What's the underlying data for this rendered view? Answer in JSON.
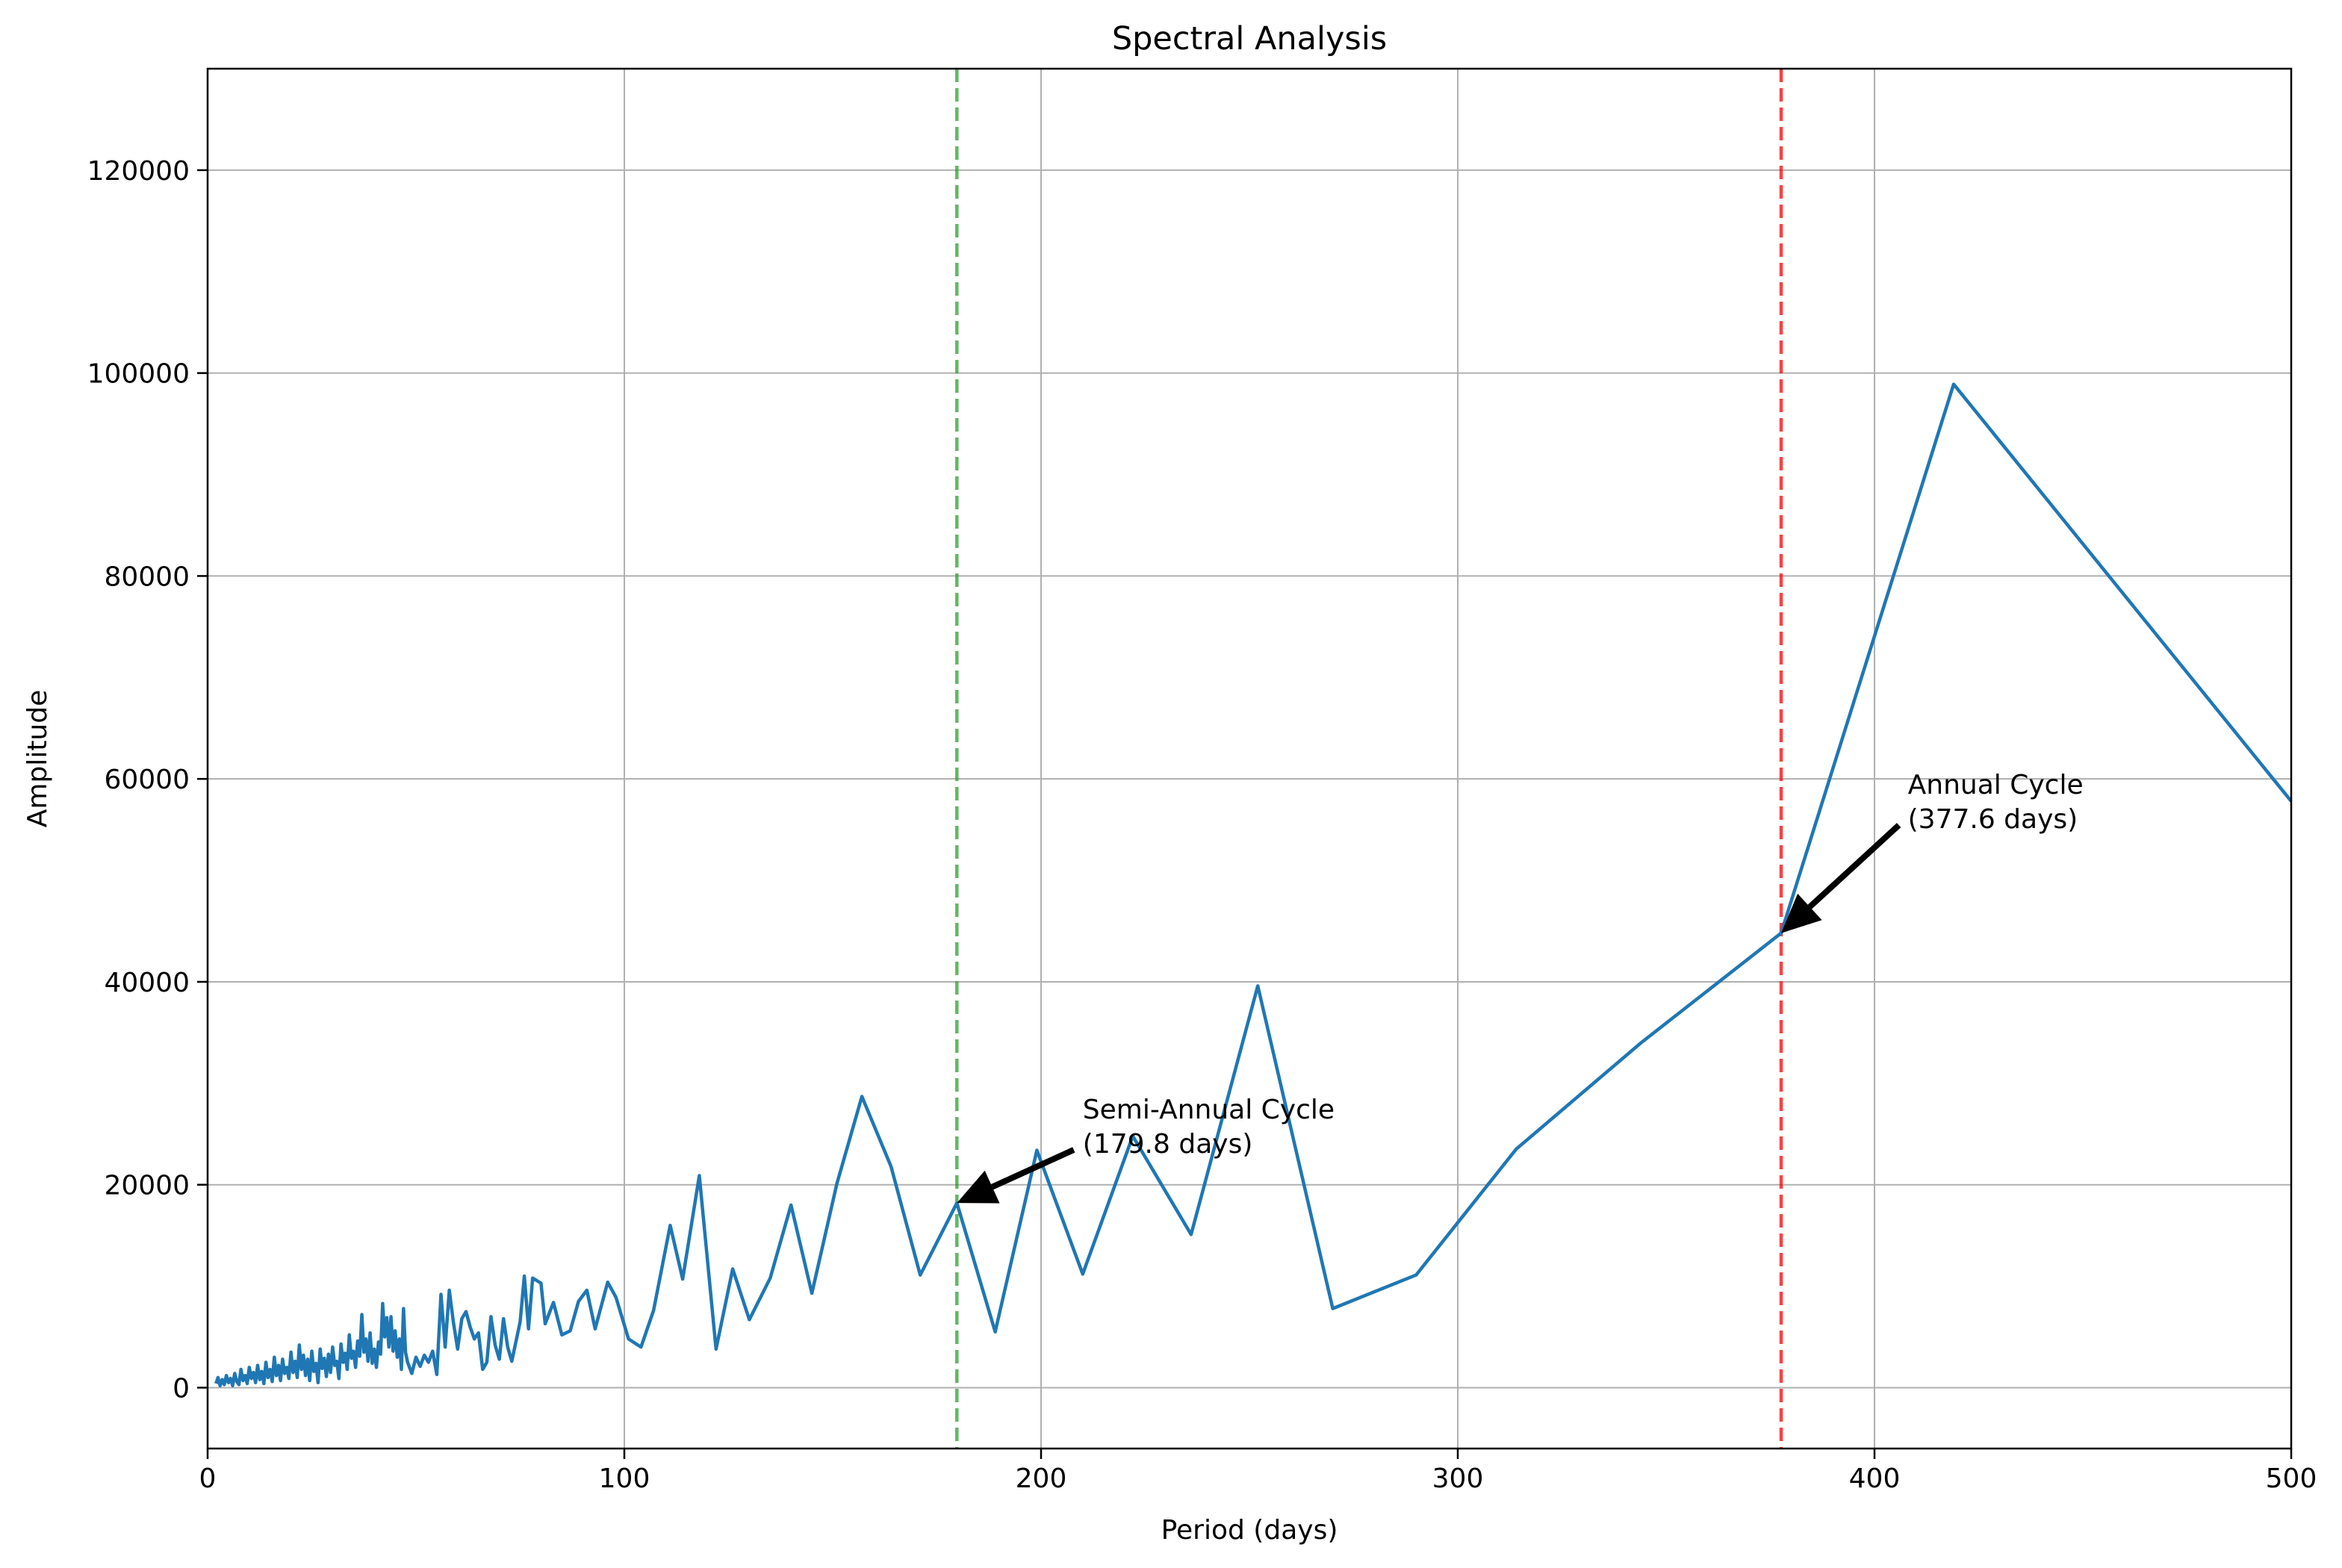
{
  "chart_data": {
    "type": "line",
    "title": "Spectral Analysis",
    "xlabel": "Period (days)",
    "ylabel": "Amplitude",
    "xlim": [
      0,
      500
    ],
    "ylim": [
      -6000,
      130000
    ],
    "xticks": [
      0,
      100,
      200,
      300,
      400,
      500
    ],
    "yticks": [
      0,
      20000,
      40000,
      60000,
      80000,
      100000,
      120000
    ],
    "xtick_labels": [
      "0",
      "100",
      "200",
      "300",
      "400",
      "500"
    ],
    "ytick_labels": [
      "0",
      "20000",
      "40000",
      "60000",
      "80000",
      "100000",
      "120000"
    ],
    "grid": true,
    "series": [
      {
        "color": "#1f77b4",
        "points": [
          [
            2,
            400
          ],
          [
            2.5,
            1000
          ],
          [
            3,
            200
          ],
          [
            3.5,
            800
          ],
          [
            4,
            300
          ],
          [
            4.5,
            1200
          ],
          [
            5,
            500
          ],
          [
            5.5,
            900
          ],
          [
            6,
            200
          ],
          [
            6.5,
            1400
          ],
          [
            7,
            600
          ],
          [
            7.5,
            300
          ],
          [
            8,
            1800
          ],
          [
            8.5,
            700
          ],
          [
            9,
            1200
          ],
          [
            9.5,
            400
          ],
          [
            10,
            2000
          ],
          [
            10.5,
            900
          ],
          [
            11,
            1500
          ],
          [
            11.5,
            500
          ],
          [
            12,
            2200
          ],
          [
            12.5,
            800
          ],
          [
            13,
            1600
          ],
          [
            13.5,
            400
          ],
          [
            14,
            2500
          ],
          [
            14.5,
            1000
          ],
          [
            15,
            1800
          ],
          [
            15.5,
            600
          ],
          [
            16,
            3000
          ],
          [
            16.5,
            1200
          ],
          [
            17,
            2200
          ],
          [
            17.5,
            700
          ],
          [
            18,
            2800
          ],
          [
            18.5,
            1400
          ],
          [
            19,
            2000
          ],
          [
            19.5,
            900
          ],
          [
            20,
            3500
          ],
          [
            20.5,
            1500
          ],
          [
            21,
            2600
          ],
          [
            21.5,
            1000
          ],
          [
            22,
            4200
          ],
          [
            22.5,
            1800
          ],
          [
            23,
            3200
          ],
          [
            23.5,
            1200
          ],
          [
            24,
            2800
          ],
          [
            24.5,
            700
          ],
          [
            25,
            3600
          ],
          [
            25.5,
            1600
          ],
          [
            26,
            2400
          ],
          [
            26.5,
            500
          ],
          [
            27,
            3800
          ],
          [
            27.5,
            1900
          ],
          [
            28,
            2900
          ],
          [
            28.5,
            1100
          ],
          [
            29,
            3300
          ],
          [
            29.5,
            1500
          ],
          [
            30,
            4000
          ],
          [
            30.5,
            2200
          ],
          [
            31,
            2600
          ],
          [
            31.5,
            900
          ],
          [
            32,
            4300
          ],
          [
            32.5,
            2500
          ],
          [
            33,
            3400
          ],
          [
            33.5,
            1800
          ],
          [
            34,
            5200
          ],
          [
            34.5,
            2900
          ],
          [
            35,
            3600
          ],
          [
            35.5,
            2000
          ],
          [
            36,
            4600
          ],
          [
            36.5,
            3100
          ],
          [
            37,
            7200
          ],
          [
            37.5,
            3500
          ],
          [
            38,
            4800
          ],
          [
            38.5,
            2600
          ],
          [
            39,
            5400
          ],
          [
            39.5,
            2400
          ],
          [
            40,
            3800
          ],
          [
            40.5,
            2000
          ],
          [
            41,
            4500
          ],
          [
            41.5,
            3300
          ],
          [
            42,
            8300
          ],
          [
            42.5,
            5000
          ],
          [
            43,
            6900
          ],
          [
            43.5,
            4000
          ],
          [
            44,
            7000
          ],
          [
            44.5,
            3600
          ],
          [
            45,
            5600
          ],
          [
            45.5,
            3000
          ],
          [
            46,
            4800
          ],
          [
            46.5,
            1800
          ],
          [
            47,
            7800
          ],
          [
            47.5,
            3500
          ],
          [
            48,
            2500
          ],
          [
            49,
            1400
          ],
          [
            50,
            3000
          ],
          [
            51,
            2100
          ],
          [
            52,
            3200
          ],
          [
            53,
            2500
          ],
          [
            54,
            3600
          ],
          [
            55,
            1300
          ],
          [
            56,
            9200
          ],
          [
            57,
            4000
          ],
          [
            58,
            9600
          ],
          [
            59,
            6400
          ],
          [
            60,
            3800
          ],
          [
            61,
            6800
          ],
          [
            62,
            7500
          ],
          [
            63,
            6000
          ],
          [
            64,
            4800
          ],
          [
            65,
            5400
          ],
          [
            66,
            1800
          ],
          [
            67,
            2500
          ],
          [
            68,
            7000
          ],
          [
            69,
            4200
          ],
          [
            70,
            2800
          ],
          [
            71,
            6800
          ],
          [
            72,
            4000
          ],
          [
            73,
            2600
          ],
          [
            75,
            6500
          ],
          [
            76,
            11000
          ],
          [
            77,
            5800
          ],
          [
            78,
            10800
          ],
          [
            80,
            10300
          ],
          [
            81,
            6300
          ],
          [
            83,
            8400
          ],
          [
            85,
            5200
          ],
          [
            87,
            5600
          ],
          [
            89,
            8500
          ],
          [
            91,
            9600
          ],
          [
            93,
            5800
          ],
          [
            96,
            10400
          ],
          [
            98,
            8900
          ],
          [
            101,
            4800
          ],
          [
            104,
            4000
          ],
          [
            107,
            7600
          ],
          [
            111,
            16000
          ],
          [
            114,
            10700
          ],
          [
            118,
            20900
          ],
          [
            122,
            3800
          ],
          [
            126,
            11700
          ],
          [
            130,
            6700
          ],
          [
            135,
            10800
          ],
          [
            140,
            18000
          ],
          [
            145,
            9300
          ],
          [
            151,
            20100
          ],
          [
            157,
            28700
          ],
          [
            164,
            21800
          ],
          [
            171,
            11100
          ],
          [
            179.8,
            18200
          ],
          [
            189,
            5500
          ],
          [
            199,
            23400
          ],
          [
            210,
            11200
          ],
          [
            222,
            24800
          ],
          [
            236,
            15100
          ],
          [
            252,
            39600
          ],
          [
            270,
            7800
          ],
          [
            290,
            11100
          ],
          [
            314,
            23500
          ],
          [
            344,
            34000
          ],
          [
            377.6,
            44800
          ],
          [
            419,
            98900
          ],
          [
            500,
            57800
          ]
        ]
      }
    ],
    "reference_lines": [
      {
        "x": 179.8,
        "color": "#2ca02c",
        "style": "dashed"
      },
      {
        "x": 377.6,
        "color": "#ff0000",
        "style": "dashed"
      }
    ],
    "annotations": [
      {
        "lines": [
          "Semi-Annual Cycle",
          "(179.8 days)"
        ],
        "point": [
          179.8,
          18200
        ],
        "text_at": [
          210,
          23000
        ]
      },
      {
        "lines": [
          "Annual Cycle",
          "(377.6 days)"
        ],
        "point": [
          377.6,
          44800
        ],
        "text_at": [
          408,
          55000
        ]
      }
    ]
  }
}
